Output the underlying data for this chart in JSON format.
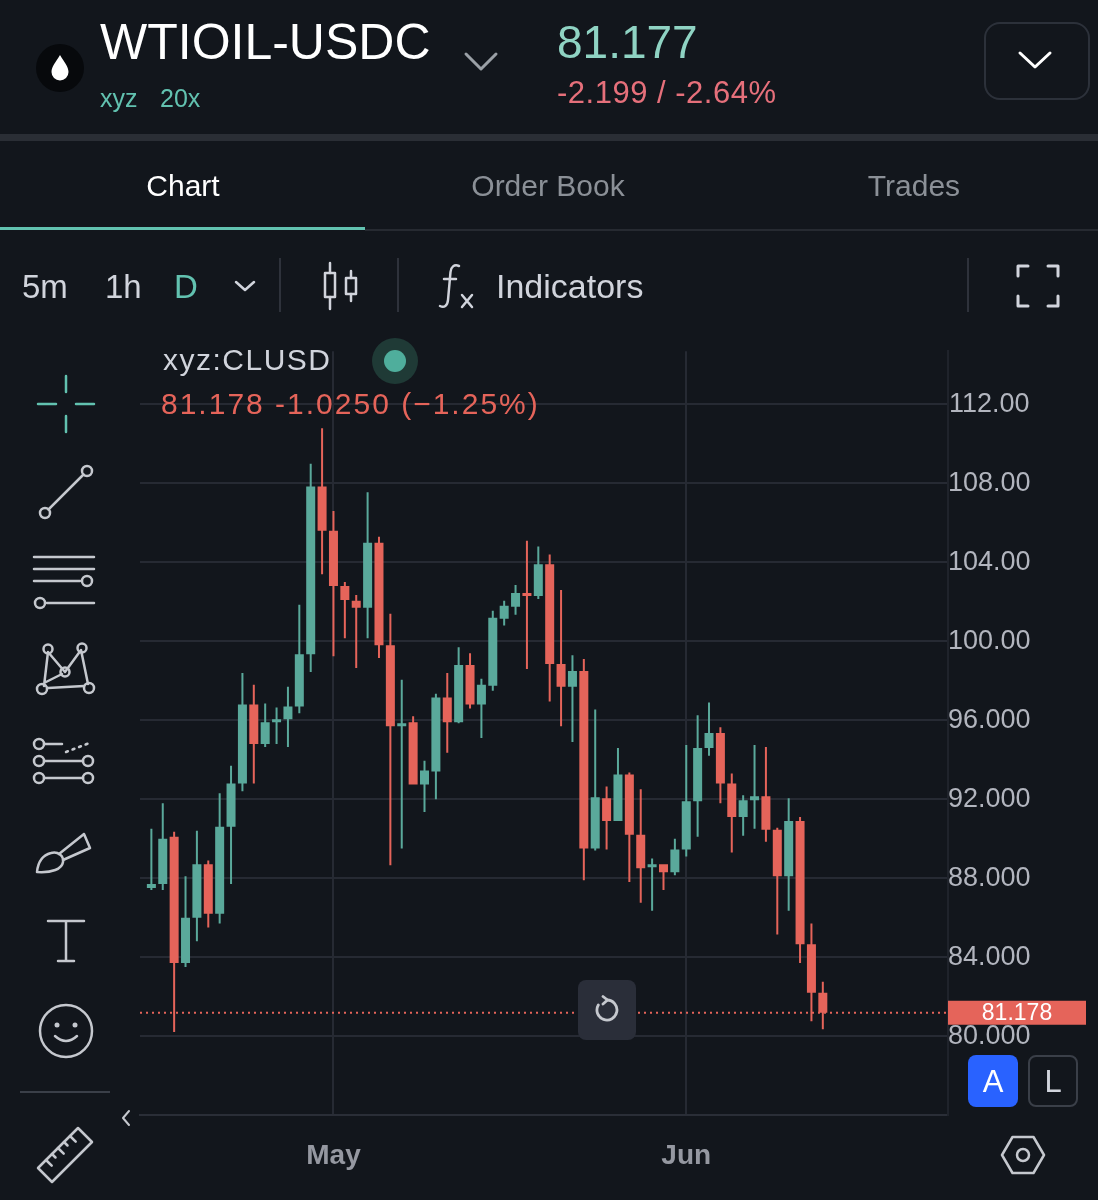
{
  "chart_data": {
    "type": "candlestick",
    "title": "WTIOIL-USDC",
    "subtitle": "xyz:CLUSD",
    "annotations": [
      "xyz",
      "20x",
      "81.177",
      "-2.199 / -2.64%",
      "Chart",
      "Order Book",
      "Trades",
      "5m",
      "1h",
      "D",
      "Indicators",
      "81.178 -1.0250 (−1.25%)",
      "A",
      "L"
    ],
    "x": [
      "--04-15",
      "--04-16",
      "--04-17",
      "--04-18",
      "--04-19",
      "--04-20",
      "--04-21",
      "--04-22",
      "--04-23",
      "--04-24",
      "--04-25",
      "--04-26",
      "--04-27",
      "--04-28",
      "--04-29",
      "--04-30",
      "--05-01",
      "--05-02",
      "--05-03",
      "--05-04",
      "--05-05",
      "--05-06",
      "--05-07",
      "--05-08",
      "--05-09",
      "--05-10",
      "--05-11",
      "--05-12",
      "--05-13",
      "--05-14",
      "--05-15",
      "--05-16",
      "--05-17",
      "--05-18",
      "--05-19",
      "--05-20",
      "--05-21",
      "--05-22",
      "--05-23",
      "--05-24",
      "--05-25",
      "--05-26",
      "--05-27",
      "--05-28",
      "--05-29",
      "--05-30",
      "--05-31",
      "--06-01",
      "--06-02",
      "--06-03",
      "--06-04",
      "--06-05",
      "--06-06",
      "--06-07",
      "--06-08",
      "--06-09",
      "--06-10",
      "--06-11",
      "--06-12",
      "--06-13"
    ],
    "ohlc": [
      [
        87.5,
        90.5,
        87.4,
        87.7
      ],
      [
        87.7,
        91.8,
        87.4,
        90.0
      ],
      [
        90.1,
        90.35,
        80.2,
        83.7
      ],
      [
        83.7,
        88.1,
        83.5,
        86.0
      ],
      [
        86.0,
        90.4,
        84.8,
        88.7
      ],
      [
        88.7,
        88.9,
        85.5,
        86.2
      ],
      [
        86.2,
        92.3,
        85.7,
        90.6
      ],
      [
        90.6,
        93.7,
        87.7,
        92.8
      ],
      [
        92.8,
        98.4,
        92.4,
        96.8
      ],
      [
        96.8,
        97.8,
        92.8,
        94.8
      ],
      [
        94.8,
        96.85,
        94.65,
        95.9
      ],
      [
        95.9,
        96.65,
        94.8,
        96.05
      ],
      [
        96.05,
        97.7,
        94.65,
        96.7
      ],
      [
        96.7,
        101.85,
        96.35,
        99.35
      ],
      [
        99.35,
        109.0,
        98.45,
        107.85
      ],
      [
        107.85,
        110.8,
        103.4,
        105.6
      ],
      [
        105.6,
        106.6,
        99.25,
        102.8
      ],
      [
        102.8,
        103.0,
        100.15,
        102.1
      ],
      [
        102.05,
        102.35,
        98.65,
        101.7
      ],
      [
        101.7,
        107.55,
        100.15,
        105.0
      ],
      [
        105.0,
        105.3,
        99.15,
        99.8
      ],
      [
        99.8,
        101.4,
        88.65,
        95.7
      ],
      [
        95.7,
        98.05,
        89.5,
        95.85
      ],
      [
        95.9,
        96.2,
        92.75,
        92.75
      ],
      [
        92.75,
        93.95,
        91.35,
        93.45
      ],
      [
        93.4,
        97.35,
        92.0,
        97.15
      ],
      [
        97.15,
        98.4,
        94.35,
        95.9
      ],
      [
        95.9,
        99.7,
        95.85,
        98.8
      ],
      [
        98.8,
        99.4,
        96.6,
        96.8
      ],
      [
        96.8,
        98.1,
        95.1,
        97.8
      ],
      [
        97.75,
        101.55,
        97.5,
        101.2
      ],
      [
        101.15,
        102.05,
        100.8,
        101.8
      ],
      [
        101.75,
        102.85,
        101.35,
        102.45
      ],
      [
        102.45,
        105.1,
        98.6,
        102.3
      ],
      [
        102.3,
        104.8,
        102.15,
        103.9
      ],
      [
        103.9,
        104.4,
        96.95,
        98.85
      ],
      [
        98.85,
        102.6,
        95.7,
        97.7
      ],
      [
        97.7,
        99.3,
        94.9,
        98.5
      ],
      [
        98.5,
        99.1,
        87.9,
        89.5
      ],
      [
        89.5,
        96.55,
        89.4,
        92.1
      ],
      [
        92.05,
        92.65,
        89.45,
        90.9
      ],
      [
        90.9,
        94.6,
        90.9,
        93.25
      ],
      [
        93.25,
        93.35,
        87.8,
        90.2
      ],
      [
        90.2,
        92.5,
        86.75,
        88.5
      ],
      [
        88.55,
        89.0,
        86.35,
        88.7
      ],
      [
        88.7,
        88.7,
        87.4,
        88.3
      ],
      [
        88.3,
        90.0,
        88.15,
        89.45
      ],
      [
        89.45,
        94.75,
        89.1,
        91.9
      ],
      [
        91.9,
        96.25,
        90.1,
        94.6
      ],
      [
        94.6,
        96.9,
        94.2,
        95.35
      ],
      [
        95.35,
        95.65,
        91.8,
        92.8
      ],
      [
        92.8,
        93.3,
        89.3,
        91.1
      ],
      [
        91.1,
        92.2,
        90.15,
        91.95
      ],
      [
        91.95,
        94.75,
        90.5,
        92.15
      ],
      [
        92.15,
        94.65,
        89.85,
        90.45
      ],
      [
        90.45,
        90.55,
        85.15,
        88.1
      ],
      [
        88.1,
        92.05,
        86.35,
        90.9
      ],
      [
        90.9,
        91.1,
        83.7,
        84.65
      ],
      [
        84.65,
        85.7,
        80.75,
        82.2
      ],
      [
        82.2,
        82.75,
        80.35,
        81.178
      ]
    ],
    "colors": [
      "#5aa99b",
      "#5aa99b",
      "#e5645a",
      "#5aa99b",
      "#5aa99b",
      "#e5645a",
      "#5aa99b",
      "#5aa99b",
      "#5aa99b",
      "#e5645a",
      "#5aa99b",
      "#5aa99b",
      "#5aa99b",
      "#5aa99b",
      "#5aa99b",
      "#e5645a",
      "#e5645a",
      "#e5645a",
      "#e5645a",
      "#5aa99b",
      "#e5645a",
      "#e5645a",
      "#5aa99b",
      "#e5645a",
      "#5aa99b",
      "#5aa99b",
      "#e5645a",
      "#5aa99b",
      "#e5645a",
      "#5aa99b",
      "#5aa99b",
      "#5aa99b",
      "#5aa99b",
      "#e5645a",
      "#5aa99b",
      "#e5645a",
      "#e5645a",
      "#5aa99b",
      "#e5645a",
      "#5aa99b",
      "#e5645a",
      "#5aa99b",
      "#e5645a",
      "#e5645a",
      "#5aa99b",
      "#e5645a",
      "#5aa99b",
      "#5aa99b",
      "#5aa99b",
      "#5aa99b",
      "#e5645a",
      "#e5645a",
      "#5aa99b",
      "#5aa99b",
      "#e5645a",
      "#e5645a",
      "#5aa99b",
      "#e5645a",
      "#e5645a",
      "#e5645a"
    ],
    "xlim": [
      "--04-14",
      "--06-24"
    ],
    "xticks": [
      {
        "value": "--05-01",
        "label": "May"
      },
      {
        "value": "--06-01",
        "label": "Jun"
      }
    ],
    "ylim": [
      76,
      114.7
    ],
    "yticks": [
      {
        "value": 80,
        "label": "80.000"
      },
      {
        "value": 84,
        "label": "84.000"
      },
      {
        "value": 88,
        "label": "88.000"
      },
      {
        "value": 92,
        "label": "92.000"
      },
      {
        "value": 96,
        "label": "96.000"
      },
      {
        "value": 100,
        "label": "100.00"
      },
      {
        "value": 104,
        "label": "104.00"
      },
      {
        "value": 108,
        "label": "108.00"
      },
      {
        "value": 112,
        "label": "112.00"
      }
    ],
    "grid": true,
    "ref_lines": [
      {
        "axis": "y",
        "value": 81.178,
        "label": "81.178",
        "color": "#e5645a",
        "line_style": "dotted"
      }
    ]
  }
}
